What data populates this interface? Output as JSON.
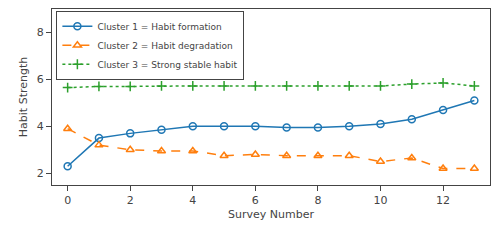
{
  "chart_data": {
    "type": "line",
    "x_label": "Survey Number",
    "y_label": "Habit Strength",
    "series": [
      {
        "name": "Cluster 1 = Habit formation",
        "marker": "circle",
        "line_style": "solid",
        "x": [
          0,
          1,
          2,
          3,
          4,
          5,
          6,
          7,
          8,
          9,
          10,
          11,
          12,
          13
        ],
        "values": [
          2.3,
          3.5,
          3.7,
          3.85,
          4.0,
          4.0,
          4.0,
          3.95,
          3.95,
          4.0,
          4.1,
          4.3,
          4.7,
          5.1
        ]
      },
      {
        "name": "Cluster 2 = Habit degradation",
        "marker": "triangle",
        "line_style": "dashed",
        "x": [
          0,
          1,
          2,
          3,
          4,
          5,
          6,
          7,
          8,
          9,
          10,
          11,
          12,
          13
        ],
        "values": [
          3.9,
          3.2,
          3.0,
          2.95,
          2.95,
          2.75,
          2.8,
          2.75,
          2.75,
          2.75,
          2.5,
          2.65,
          2.2,
          2.2
        ]
      },
      {
        "name": "Cluster 3 = Strong stable habit",
        "marker": "plus",
        "line_style": "dotted",
        "x": [
          0,
          1,
          2,
          3,
          4,
          5,
          6,
          7,
          8,
          9,
          10,
          11,
          12,
          13
        ],
        "values": [
          5.65,
          5.7,
          5.7,
          5.72,
          5.72,
          5.72,
          5.72,
          5.72,
          5.72,
          5.72,
          5.72,
          5.8,
          5.85,
          5.72
        ]
      }
    ],
    "xlim": [
      -0.5,
      13.5
    ],
    "ylim": [
      1.5,
      9.0
    ],
    "xticks": [
      0,
      2,
      4,
      6,
      8,
      10,
      12
    ],
    "yticks": [
      2,
      4,
      6,
      8
    ],
    "grid": false,
    "legend": "upper left"
  }
}
